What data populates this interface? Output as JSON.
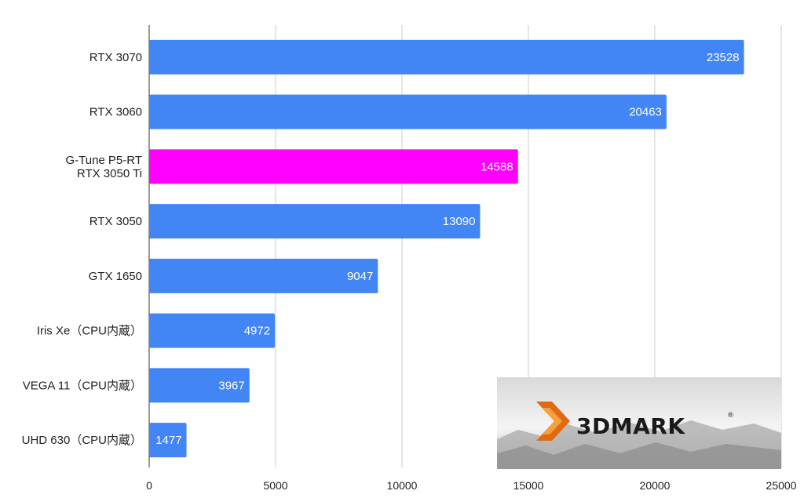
{
  "chart_data": {
    "type": "bar",
    "orientation": "horizontal",
    "categories": [
      [
        "RTX 3070"
      ],
      [
        "RTX 3060"
      ],
      [
        "G-Tune P5-RT",
        "RTX 3050 Ti"
      ],
      [
        "RTX 3050"
      ],
      [
        "GTX 1650"
      ],
      [
        "Iris Xe（CPU内蔵）"
      ],
      [
        "VEGA 11（CPU内蔵）"
      ],
      [
        "UHD 630（CPU内蔵）"
      ]
    ],
    "values": [
      23528,
      20463,
      14588,
      13090,
      9047,
      4972,
      3967,
      1477
    ],
    "highlight_index": 2,
    "colors": {
      "bar": "#4285f4",
      "highlight": "#ff00ff",
      "grid": "#cccccc",
      "value_text": "#ffffff"
    },
    "xlim": [
      0,
      25000
    ],
    "xticks": [
      0,
      5000,
      10000,
      15000,
      20000,
      25000
    ],
    "grid": true,
    "data_labels": true,
    "legend": "none"
  },
  "logo": {
    "text": "3DMARK",
    "mark": "®",
    "position": "bottom-right"
  }
}
